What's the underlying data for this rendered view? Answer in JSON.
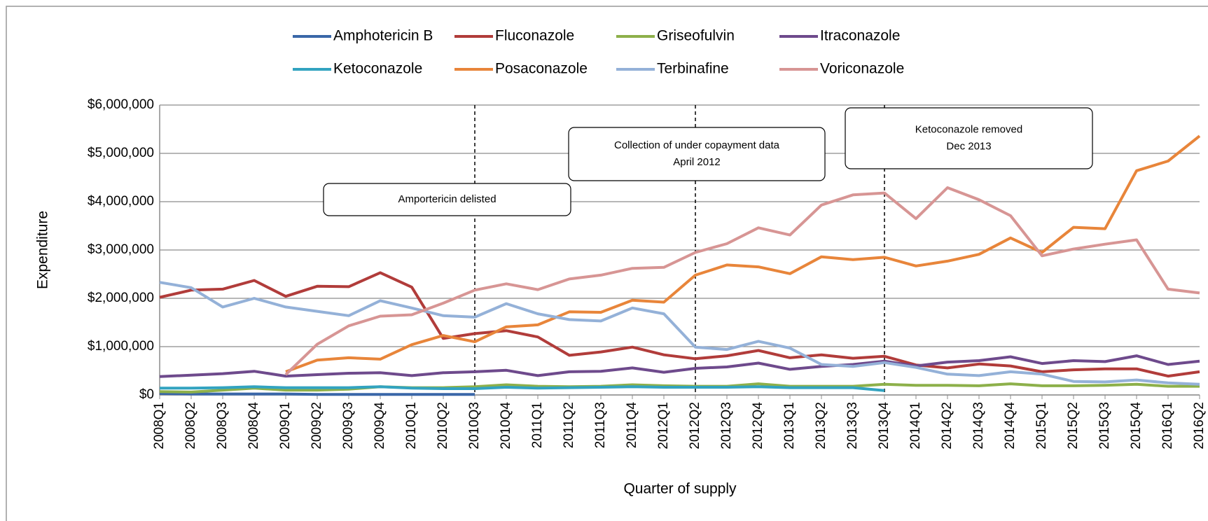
{
  "chart_data": {
    "type": "line",
    "x_label": "Quarter of supply",
    "y_label": "Expenditure",
    "categories": [
      "2008Q1",
      "2008Q2",
      "2008Q3",
      "2008Q4",
      "2009Q1",
      "2009Q2",
      "2009Q3",
      "2009Q4",
      "2010Q1",
      "2010Q2",
      "2010Q3",
      "2010Q4",
      "2011Q1",
      "2011Q2",
      "2011Q3",
      "2011Q4",
      "2012Q1",
      "2012Q2",
      "2012Q3",
      "2012Q4",
      "2013Q1",
      "2013Q2",
      "2013Q3",
      "2013Q4",
      "2014Q1",
      "2014Q2",
      "2014Q3",
      "2014Q4",
      "2015Q1",
      "2015Q2",
      "2015Q3",
      "2015Q4",
      "2016Q1",
      "2016Q2"
    ],
    "ylim": [
      0,
      6000000
    ],
    "yticks": [
      {
        "value": 0,
        "label": "$0"
      },
      {
        "value": 1000000,
        "label": "$1,000,000"
      },
      {
        "value": 2000000,
        "label": "$2,000,000"
      },
      {
        "value": 3000000,
        "label": "$3,000,000"
      },
      {
        "value": 4000000,
        "label": "$4,000,000"
      },
      {
        "value": 5000000,
        "label": "$5,000,000"
      },
      {
        "value": 6000000,
        "label": "$6,000,000"
      }
    ],
    "grid": true,
    "legend": "top",
    "series": [
      {
        "name": "Amphotericin B",
        "color": "#3a67a8",
        "values": [
          30000,
          20000,
          20000,
          20000,
          20000,
          10000,
          10000,
          10000,
          10000,
          10000,
          10000,
          null,
          null,
          null,
          null,
          null,
          null,
          null,
          null,
          null,
          null,
          null,
          null,
          null,
          null,
          null,
          null,
          null,
          null,
          null,
          null,
          null,
          null,
          null
        ]
      },
      {
        "name": "Fluconazole",
        "color": "#b13c3a",
        "values": [
          2020000,
          2170000,
          2190000,
          2370000,
          2040000,
          2250000,
          2240000,
          2530000,
          2230000,
          1170000,
          1270000,
          1330000,
          1200000,
          820000,
          890000,
          990000,
          830000,
          750000,
          810000,
          920000,
          770000,
          830000,
          760000,
          800000,
          620000,
          560000,
          640000,
          600000,
          480000,
          520000,
          540000,
          540000,
          390000,
          480000
        ]
      },
      {
        "name": "Griseofulvin",
        "color": "#8db04a",
        "values": [
          70000,
          60000,
          100000,
          140000,
          100000,
          100000,
          120000,
          170000,
          150000,
          150000,
          170000,
          210000,
          180000,
          170000,
          180000,
          210000,
          190000,
          180000,
          180000,
          230000,
          180000,
          180000,
          180000,
          220000,
          200000,
          200000,
          190000,
          230000,
          190000,
          190000,
          200000,
          220000,
          180000,
          180000
        ]
      },
      {
        "name": "Itraconazole",
        "color": "#6e4a8c",
        "values": [
          380000,
          410000,
          440000,
          490000,
          390000,
          420000,
          450000,
          460000,
          400000,
          460000,
          480000,
          510000,
          400000,
          480000,
          490000,
          560000,
          470000,
          550000,
          580000,
          660000,
          530000,
          590000,
          630000,
          700000,
          600000,
          680000,
          710000,
          790000,
          650000,
          710000,
          690000,
          810000,
          630000,
          700000
        ]
      },
      {
        "name": "Ketoconazole",
        "color": "#32a3c0",
        "values": [
          140000,
          140000,
          150000,
          170000,
          150000,
          150000,
          150000,
          170000,
          140000,
          130000,
          130000,
          160000,
          140000,
          150000,
          160000,
          170000,
          160000,
          160000,
          160000,
          170000,
          150000,
          150000,
          150000,
          90000,
          null,
          null,
          null,
          null,
          null,
          null,
          null,
          null,
          null,
          null
        ]
      },
      {
        "name": "Posaconazole",
        "color": "#e8853a",
        "values": [
          null,
          null,
          null,
          null,
          480000,
          720000,
          770000,
          740000,
          1040000,
          1230000,
          1100000,
          1410000,
          1450000,
          1720000,
          1710000,
          1960000,
          1920000,
          2480000,
          2690000,
          2650000,
          2510000,
          2860000,
          2800000,
          2850000,
          2670000,
          2770000,
          2910000,
          3250000,
          2950000,
          3470000,
          3440000,
          4640000,
          4840000,
          5360000
        ]
      },
      {
        "name": "Terbinafine",
        "color": "#94b1d8",
        "values": [
          2330000,
          2220000,
          1820000,
          2000000,
          1820000,
          1730000,
          1640000,
          1950000,
          1800000,
          1640000,
          1610000,
          1890000,
          1680000,
          1560000,
          1530000,
          1800000,
          1680000,
          990000,
          940000,
          1110000,
          970000,
          630000,
          590000,
          670000,
          570000,
          430000,
          400000,
          480000,
          430000,
          280000,
          270000,
          310000,
          250000,
          220000
        ]
      },
      {
        "name": "Voriconazole",
        "color": "#d79594",
        "values": [
          null,
          null,
          null,
          null,
          420000,
          1050000,
          1430000,
          1630000,
          1660000,
          1900000,
          2170000,
          2300000,
          2180000,
          2400000,
          2480000,
          2620000,
          2640000,
          2950000,
          3130000,
          3460000,
          3310000,
          3930000,
          4140000,
          4180000,
          3650000,
          4290000,
          4040000,
          3710000,
          2880000,
          3020000,
          3120000,
          3210000,
          2190000,
          2110000
        ]
      }
    ],
    "annotations": [
      {
        "category": "2010Q3",
        "lines": [
          "Amportericin delisted"
        ]
      },
      {
        "category": "2012Q2",
        "lines": [
          "Collection of under copayment data",
          "April 2012"
        ]
      },
      {
        "category": "2013Q4",
        "lines": [
          "Ketoconazole  removed",
          "Dec 2013"
        ]
      }
    ]
  }
}
